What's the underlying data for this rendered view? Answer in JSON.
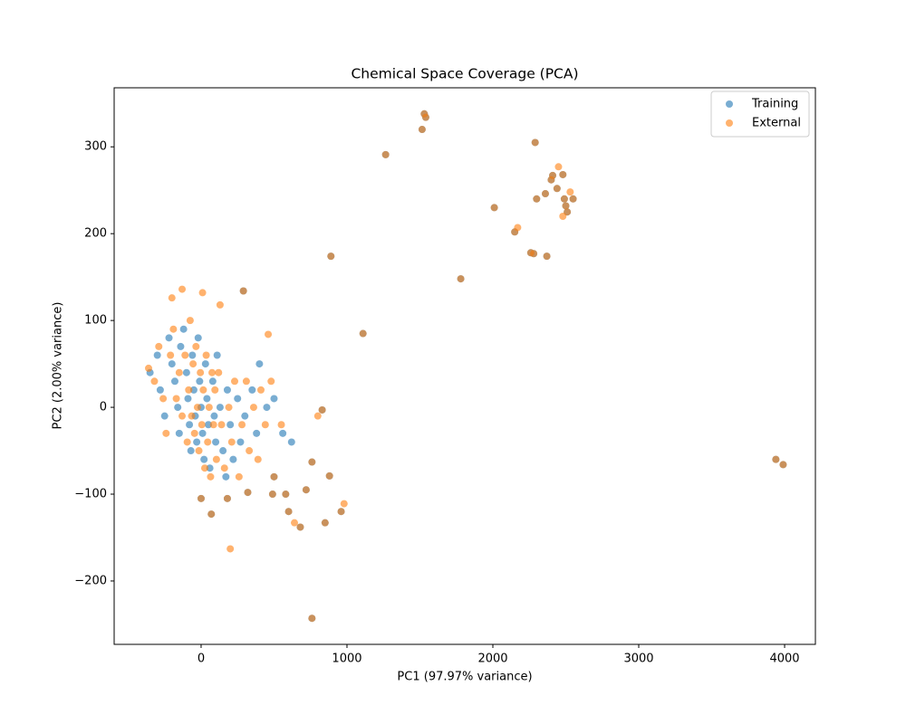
{
  "chart_data": {
    "type": "scatter",
    "title": "Chemical Space Coverage (PCA)",
    "x_label": "PC1 (97.97% variance)",
    "y_label": "PC2 (2.00% variance)",
    "xlim": [
      -596,
      4211
    ],
    "ylim": [
      -273,
      368
    ],
    "xticks": [
      0,
      1000,
      2000,
      3000,
      4000
    ],
    "yticks": [
      {
        "value": -200,
        "label": "−200"
      },
      {
        "value": -100,
        "label": "−100"
      },
      0,
      100,
      200,
      300
    ],
    "grid": false,
    "legend": "upper right",
    "alpha": 0.6,
    "series": [
      {
        "name": "Training",
        "color": "#1f77b4",
        "x": [
          1530,
          1540,
          1515,
          1265,
          2290,
          2410,
          2480,
          2400,
          2440,
          2360,
          2300,
          2490,
          2550,
          2500,
          2510,
          2010,
          2150,
          2260,
          2280,
          2370,
          890,
          1780,
          1110,
          290,
          760,
          3940,
          3990,
          850,
          680,
          960,
          880,
          760,
          830,
          70,
          180,
          0,
          600,
          720,
          490,
          320,
          500,
          580,
          -350,
          -300,
          -280,
          -250,
          -220,
          -200,
          -180,
          -160,
          -150,
          -140,
          -120,
          -100,
          -90,
          -80,
          -70,
          -60,
          -50,
          -40,
          -30,
          -20,
          -10,
          0,
          10,
          20,
          30,
          40,
          50,
          60,
          80,
          90,
          100,
          110,
          130,
          150,
          170,
          180,
          200,
          220,
          250,
          270,
          300,
          350,
          380,
          400,
          450,
          500,
          560,
          620
        ],
        "values": [
          338,
          334,
          320,
          291,
          305,
          267,
          268,
          262,
          252,
          246,
          240,
          240,
          240,
          232,
          225,
          230,
          202,
          178,
          177,
          174,
          174,
          148,
          85,
          134,
          -243,
          -60,
          -66,
          -133,
          -138,
          -120,
          -79,
          -63,
          -3,
          -123,
          -105,
          -105,
          -120,
          -95,
          -100,
          -98,
          -80,
          -100,
          40,
          60,
          20,
          -10,
          80,
          50,
          30,
          0,
          -30,
          70,
          90,
          40,
          10,
          -20,
          -50,
          60,
          20,
          -10,
          -40,
          80,
          30,
          0,
          -30,
          -60,
          50,
          10,
          -20,
          -70,
          30,
          -10,
          -40,
          60,
          0,
          -50,
          -80,
          20,
          -20,
          -60,
          10,
          -40,
          -10,
          20,
          -30,
          50,
          0,
          10,
          -30,
          -40
        ]
      },
      {
        "name": "External",
        "color": "#ff7f0e",
        "x": [
          1530,
          1540,
          1515,
          1265,
          2290,
          2410,
          2480,
          2400,
          2440,
          2360,
          2300,
          2490,
          2550,
          2500,
          2510,
          2010,
          2150,
          2260,
          2280,
          2370,
          890,
          1780,
          1110,
          290,
          760,
          3940,
          3990,
          850,
          680,
          960,
          880,
          760,
          830,
          70,
          180,
          0,
          600,
          720,
          490,
          320,
          500,
          580,
          2450,
          2530,
          2480,
          2170,
          200,
          640,
          980,
          800,
          10,
          130,
          460,
          -130,
          -200,
          -360,
          -320,
          -290,
          -260,
          -240,
          -210,
          -190,
          -170,
          -150,
          -130,
          -110,
          -95,
          -85,
          -75,
          -65,
          -55,
          -45,
          -35,
          -25,
          -15,
          -5,
          5,
          15,
          25,
          35,
          45,
          55,
          65,
          75,
          85,
          95,
          105,
          120,
          140,
          160,
          190,
          210,
          230,
          260,
          280,
          310,
          330,
          360,
          390,
          410,
          440,
          480,
          550
        ],
        "values": [
          338,
          334,
          320,
          291,
          305,
          267,
          268,
          262,
          252,
          246,
          240,
          240,
          240,
          232,
          225,
          230,
          202,
          178,
          177,
          174,
          174,
          148,
          85,
          134,
          -243,
          -60,
          -66,
          -133,
          -138,
          -120,
          -79,
          -63,
          -3,
          -123,
          -105,
          -105,
          -120,
          -95,
          -100,
          -98,
          -80,
          -100,
          277,
          248,
          220,
          207,
          -163,
          -133,
          -111,
          -10,
          132,
          118,
          84,
          136,
          126,
          45,
          30,
          70,
          10,
          -30,
          60,
          90,
          10,
          40,
          -10,
          60,
          -40,
          20,
          100,
          -10,
          50,
          -30,
          70,
          0,
          -50,
          40,
          -20,
          20,
          -70,
          60,
          -40,
          0,
          -80,
          40,
          -20,
          20,
          -60,
          40,
          -20,
          -70,
          0,
          -40,
          30,
          -80,
          -20,
          30,
          -50,
          0,
          -60,
          20,
          -20,
          30,
          -20
        ]
      }
    ]
  }
}
